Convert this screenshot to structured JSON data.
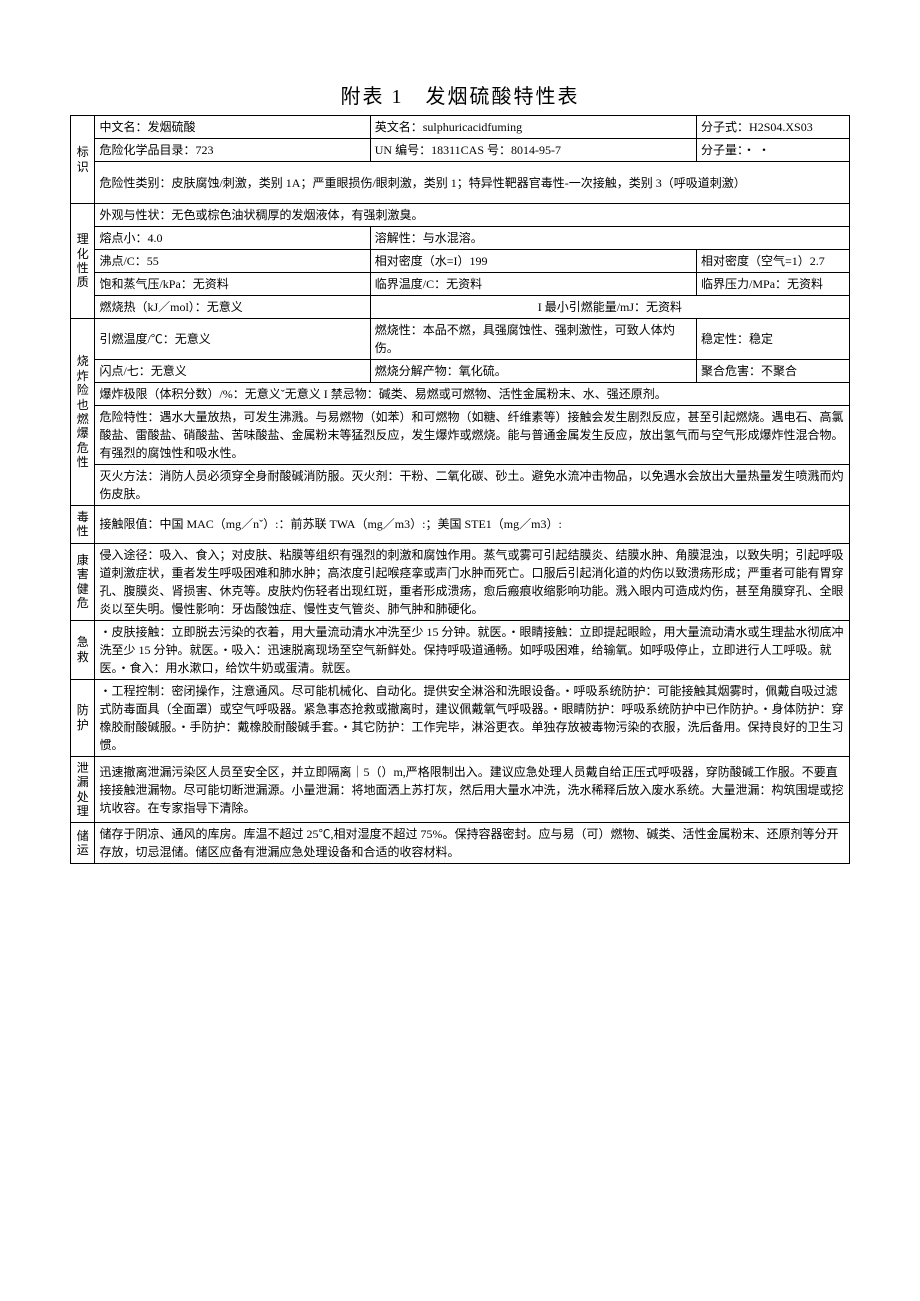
{
  "title": "附表 1　发烟硫酸特性表",
  "ident": {
    "label": "标识",
    "name_cn_lbl": "中文名：发烟硫酸",
    "name_en_lbl": "英文名：sulphuricacidfuming",
    "formula_lbl": "分子式：H2S04.XS03",
    "catalog_lbl": "危险化学品目录：723",
    "un_lbl": "UN 编号：18311CAS 号：8014-95-7",
    "mw_lbl": "分子量：・ ・",
    "hazard_class": "危险性类别：皮肤腐蚀/刺激，类别 1A；严重眼损伤/眼刺激，类别 1；特异性靶器官毒性-一次接触，类别 3（呼吸道刺激）"
  },
  "phys": {
    "label": "理化性质",
    "appearance": "外观与性状：无色或棕色油状稠厚的发烟液体，有强刺激臭。",
    "mp": "熔点小：4.0",
    "solub": "溶解性：与水混溶。",
    "bp": "沸点/C：55",
    "rd_water": "相对密度（水=I）199",
    "rd_air": "相对密度（空气=1）2.7",
    "vp": "饱和蒸气压/kPa：无资料",
    "crit_temp": "临界温度/C：无资料",
    "crit_press": "临界压力/MPa：无资料",
    "comb_heat": "燃烧热（kJ／mol）：无意义",
    "min_ign_energy": "I 最小引燃能量/mJ：无资料"
  },
  "fire": {
    "label": "烧炸险也燃爆危性",
    "ign_temp": "引燃温度/℃：无意义",
    "combustion": "燃烧性：本品不燃，具强腐蚀性、强刺激性，可致人体灼伤。",
    "stability": "稳定性：稳定",
    "flash": "闪点/七：无意义",
    "decomp": "燃烧分解产物：氧化硫。",
    "polymer": "聚合危害：不聚合",
    "limits": "爆炸极限（体积分数）/%：无意义ˇ无意义 I 禁忌物：碱类、易燃或可燃物、活性金属粉末、水、强还原剂。",
    "danger": "危险特性：遇水大量放热，可发生沸溅。与易燃物（如苯）和可燃物（如糖、纤维素等）接触会发生剧烈反应，甚至引起燃烧。遇电石、高氯酸盐、雷酸盐、硝酸盐、苦味酸盐、金属粉末等猛烈反应，发生爆炸或燃烧。能与普通金属发生反应，放出氢气而与空气形成爆炸性混合物。有强烈的腐蚀性和吸水性。",
    "extinguish": "灭火方法：消防人员必须穿全身耐酸碱消防服。灭火剂：干粉、二氧化碳、砂土。避免水流冲击物品，以免遇水会放出大量热量发生喷溅而灼伤皮肤。"
  },
  "tox": {
    "label": "毒性",
    "limit": "接触限值：中国 MAC（mg／nˇ）:：前苏联 TWA（mg／m3）:；美国 STE1（mg／m3）:"
  },
  "health": {
    "label": "康害健危",
    "text": "侵入途径：吸入、食入；对皮肤、粘膜等组织有强烈的刺激和腐蚀作用。蒸气或雾可引起结膜炎、结膜水肿、角膜混浊，以致失明；引起呼吸道刺激症状，重者发生呼吸困难和肺水肿；高浓度引起喉痉挛或声门水肿而死亡。口服后引起消化道的灼伤以致溃疡形成；严重者可能有胃穿孔、腹膜炎、肾损害、休克等。皮肤灼伤轻者出现红斑，重者形成溃疡，愈后瘢痕收缩影响功能。溅入眼内可造成灼伤，甚至角膜穿孔、全眼炎以至失明。慢性影响：牙齿酸蚀症、慢性支气管炎、肺气肿和肺硬化。"
  },
  "firstaid": {
    "label": "急救",
    "text": "・皮肤接触：立即脱去污染的衣着，用大量流动清水冲洗至少 15 分钟。就医。・眼睛接触：立即提起眼睑，用大量流动清水或生理盐水彻底冲洗至少 15 分钟。就医。・吸入：迅速脱离现场至空气新鲜处。保持呼吸道通畅。如呼吸困难，给输氧。如呼吸停止，立即进行人工呼吸。就医。・食入：用水漱口，给饮牛奶或蛋清。就医。"
  },
  "protect": {
    "label": "防护",
    "text": "・工程控制：密闭操作，注意通风。尽可能机械化、自动化。提供安全淋浴和洗眼设备。・呼吸系统防护：可能接触其烟雾时，佩戴自吸过滤式防毒面具（全面罩）或空气呼吸器。紧急事态抢救或撤离时，建议佩戴氧气呼吸器。・眼睛防护：呼吸系统防护中已作防护。・身体防护：穿橡胶耐酸碱服。・手防护：戴橡胶耐酸碱手套。・其它防护：工作完毕，淋浴更衣。单独存放被毒物污染的衣服，洗后备用。保持良好的卫生习惯。"
  },
  "leak": {
    "label": "泄漏处理",
    "text": "迅速撤离泄漏污染区人员至安全区，并立即隔离｜5（）m,严格限制出入。建议应急处理人员戴自给正压式呼吸器，穿防酸碱工作服。不要直接接触泄漏物。尽可能切断泄漏源。小量泄漏：将地面洒上苏打灰，然后用大量水冲洗，洗水稀释后放入废水系统。大量泄漏：构筑围堤或挖坑收容。在专家指导下清除。"
  },
  "storage": {
    "label": "储运",
    "text": "储存于阴凉、通风的库房。库温不超过 25℃,相对湿度不超过 75%。保持容器密封。应与易（可）燃物、碱类、活性金属粉末、还原剂等分开存放，切忌混储。储区应备有泄漏应急处理设备和合适的收容材料。"
  }
}
